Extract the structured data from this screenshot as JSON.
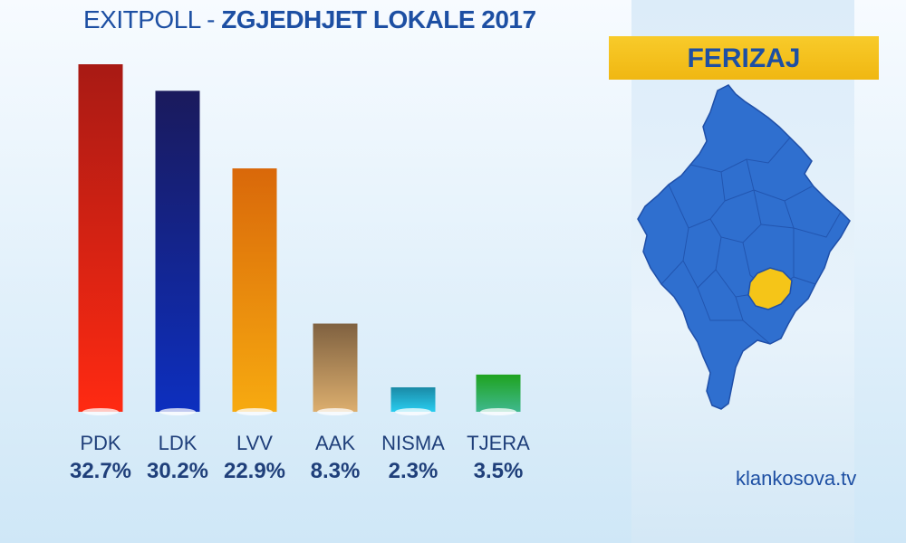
{
  "title": {
    "part1": "EXITPOLL -",
    "part2": "ZGJEDHJET LOKALE 2017"
  },
  "map": {
    "region_label": "FERIZAJ",
    "highlight_color": "#f5c518",
    "base_color": "#2f6fcf"
  },
  "footer": {
    "source": "klankosova.tv"
  },
  "chart_data": {
    "type": "bar",
    "categories": [
      "PDK",
      "LDK",
      "LVV",
      "AAK",
      "NISMA",
      "TJERA"
    ],
    "values": [
      32.7,
      30.2,
      22.9,
      8.3,
      2.3,
      3.5
    ],
    "value_labels": [
      "32.7%",
      "30.2%",
      "22.9%",
      "8.3%",
      "2.3%",
      "3.5%"
    ],
    "colors": [
      [
        "#a81a14",
        "#ff2a12"
      ],
      [
        "#1a1a5c",
        "#0d2fbf"
      ],
      [
        "#d9680a",
        "#f7aa10"
      ],
      [
        "#7f6140",
        "#dcae6e"
      ],
      [
        "#1a8aa6",
        "#29cdf0"
      ],
      [
        "#1fa31f",
        "#3fb88e"
      ]
    ],
    "grid": false
  }
}
